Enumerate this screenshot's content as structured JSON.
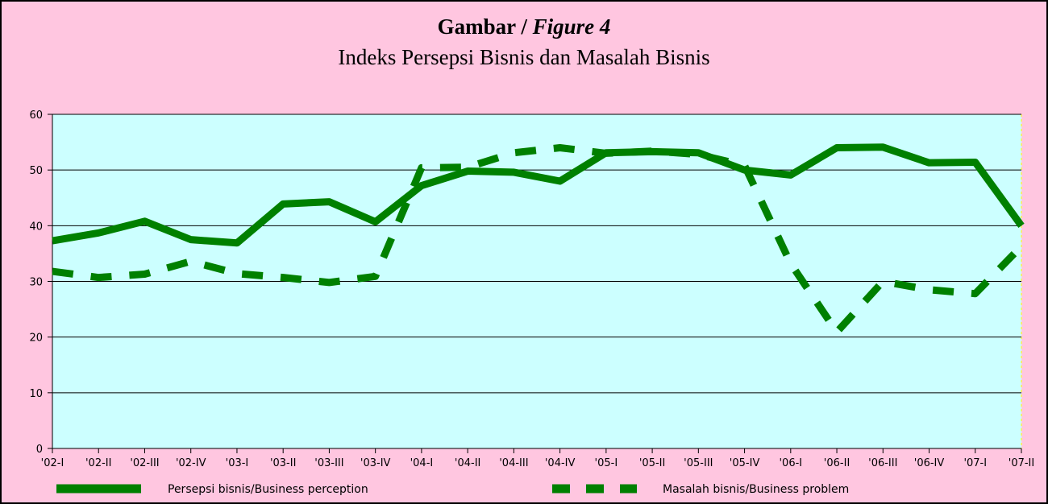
{
  "chart_data": {
    "type": "line",
    "title": {
      "text": "Gambar /",
      "emphasis": "Figure 4"
    },
    "subtitle": "Indeks Persepsi Bisnis dan Masalah Bisnis",
    "categories": [
      "'02-I",
      "'02-II",
      "'02-III",
      "'02-IV",
      "'03-I",
      "'03-II",
      "'03-III",
      "'03-IV",
      "'04-I",
      "'04-II",
      "'04-III",
      "'04-IV",
      "'05-I",
      "'05-II",
      "'05-III",
      "'05-IV",
      "'06-I",
      "'06-II",
      "'06-III",
      "'06-IV",
      "'07-I",
      "'07-II"
    ],
    "series": [
      {
        "name": "Persepsi bisnis/Business perception",
        "color": "#008000",
        "style": "solid",
        "values": [
          37.3,
          38.7,
          40.8,
          37.5,
          36.9,
          43.9,
          44.3,
          40.7,
          47.2,
          49.8,
          49.6,
          48.0,
          53.1,
          53.3,
          53.1,
          50.0,
          49.1,
          54.0,
          54.1,
          51.3,
          51.4,
          40.0
        ]
      },
      {
        "name": "Masalah bisnis/Business problem",
        "color": "#008000",
        "style": "dashed",
        "values": [
          31.8,
          30.7,
          31.3,
          33.6,
          31.4,
          30.7,
          29.8,
          30.9,
          50.4,
          50.5,
          53.1,
          54.0,
          53.0,
          53.4,
          52.8,
          50.8,
          33.2,
          20.9,
          30.0,
          28.5,
          27.8,
          36.3
        ]
      }
    ],
    "ylim": [
      0,
      60
    ],
    "yticks": [
      0,
      10,
      20,
      30,
      40,
      50,
      60
    ],
    "grid": true
  }
}
